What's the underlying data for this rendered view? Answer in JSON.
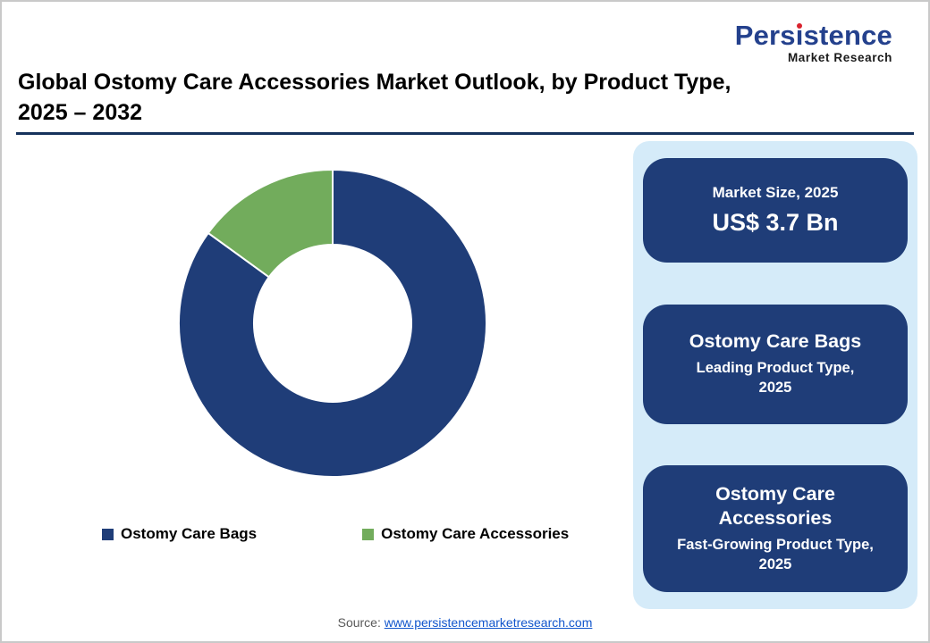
{
  "page": {
    "title_line1": "Global Ostomy Care Accessories Market Outlook, by Product Type,",
    "title_line2": "2025 – 2032",
    "source_label": "Source:",
    "source_link": "www.persistencemarketresearch.com"
  },
  "logo": {
    "brand": "Persistence",
    "sub": "Market Research"
  },
  "chart_data": {
    "type": "pie",
    "donut": true,
    "inner_radius_ratio": 0.51,
    "title": "Global Ostomy Care Accessories Market Outlook, by Product Type, 2025 – 2032",
    "categories": [
      "Ostomy Care Bags",
      "Ostomy Care Accessories"
    ],
    "values": [
      85,
      15
    ],
    "units": "percent share (estimated from arc angles, no data labels shown)",
    "colors": [
      "#1F3D78",
      "#72AC5C"
    ],
    "legend_position": "bottom",
    "start_angle_deg": 0,
    "direction": "clockwise"
  },
  "side_panel": {
    "cards": [
      {
        "line1": "Market Size, 2025",
        "line2": "US$ 3.7 Bn"
      },
      {
        "line1": "Ostomy Care Bags",
        "line2": "Leading Product Type, 2025"
      },
      {
        "line1": "Ostomy Care Accessories",
        "line2": "Fast-Growing Product Type, 2025"
      }
    ]
  },
  "colors": {
    "navy": "#1F3D78",
    "green": "#72AC5C",
    "panel_bg": "#D5EBF9",
    "logo_navy": "#24418D",
    "logo_red": "#D9232E",
    "title_rule_navy": "#16325C",
    "link_blue": "#1155CC",
    "source_gray": "#595959"
  }
}
